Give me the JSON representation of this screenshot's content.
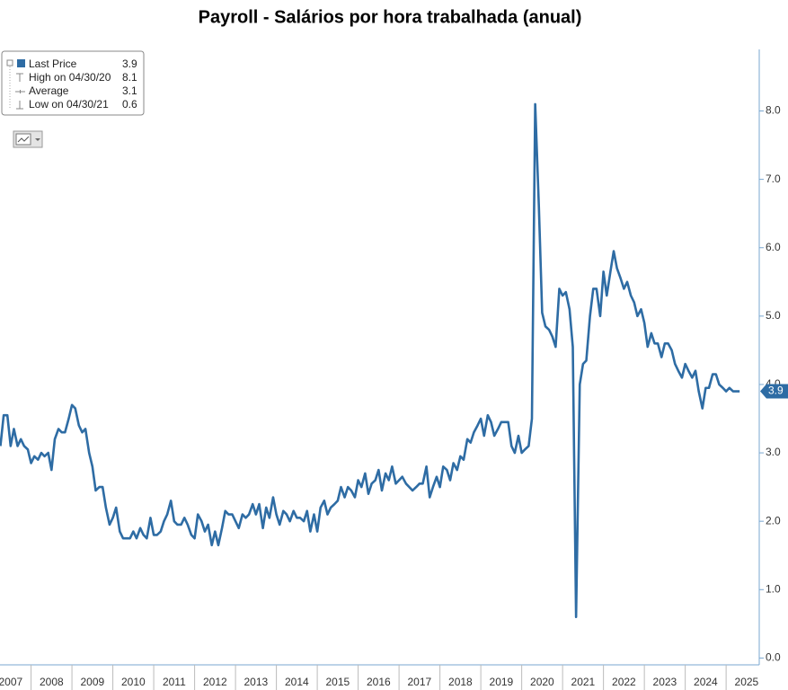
{
  "chart_data": {
    "type": "line",
    "title": "Payroll - Salários por hora trabalhada (anual)",
    "legend": {
      "position": "upper left",
      "items": [
        {
          "label": "Last Price",
          "value": 3.9
        },
        {
          "label": "High on 04/30/20",
          "value": 8.1
        },
        {
          "label": "Average",
          "value": 3.1
        },
        {
          "label": "Low on 04/30/21",
          "value": 0.6
        }
      ]
    },
    "x": [
      2007.25,
      2007.33,
      2007.42,
      2007.5,
      2007.58,
      2007.67,
      2007.75,
      2007.83,
      2007.92,
      2008.0,
      2008.08,
      2008.17,
      2008.25,
      2008.33,
      2008.42,
      2008.5,
      2008.58,
      2008.67,
      2008.75,
      2008.83,
      2008.92,
      2009.0,
      2009.08,
      2009.17,
      2009.25,
      2009.33,
      2009.42,
      2009.5,
      2009.58,
      2009.67,
      2009.75,
      2009.83,
      2009.92,
      2010.0,
      2010.08,
      2010.17,
      2010.25,
      2010.33,
      2010.42,
      2010.5,
      2010.58,
      2010.67,
      2010.75,
      2010.83,
      2010.92,
      2011.0,
      2011.08,
      2011.17,
      2011.25,
      2011.33,
      2011.42,
      2011.5,
      2011.58,
      2011.67,
      2011.75,
      2011.83,
      2011.92,
      2012.0,
      2012.08,
      2012.17,
      2012.25,
      2012.33,
      2012.42,
      2012.5,
      2012.58,
      2012.67,
      2012.75,
      2012.83,
      2012.92,
      2013.0,
      2013.08,
      2013.17,
      2013.25,
      2013.33,
      2013.42,
      2013.5,
      2013.58,
      2013.67,
      2013.75,
      2013.83,
      2013.92,
      2014.0,
      2014.08,
      2014.17,
      2014.25,
      2014.33,
      2014.42,
      2014.5,
      2014.58,
      2014.67,
      2014.75,
      2014.83,
      2014.92,
      2015.0,
      2015.08,
      2015.17,
      2015.25,
      2015.33,
      2015.42,
      2015.5,
      2015.58,
      2015.67,
      2015.75,
      2015.83,
      2015.92,
      2016.0,
      2016.08,
      2016.17,
      2016.25,
      2016.33,
      2016.42,
      2016.5,
      2016.58,
      2016.67,
      2016.75,
      2016.83,
      2016.92,
      2017.0,
      2017.08,
      2017.17,
      2017.25,
      2017.33,
      2017.42,
      2017.5,
      2017.58,
      2017.67,
      2017.75,
      2017.83,
      2017.92,
      2018.0,
      2018.08,
      2018.17,
      2018.25,
      2018.33,
      2018.42,
      2018.5,
      2018.58,
      2018.67,
      2018.75,
      2018.83,
      2018.92,
      2019.0,
      2019.08,
      2019.17,
      2019.25,
      2019.33,
      2019.42,
      2019.5,
      2019.58,
      2019.67,
      2019.75,
      2019.83,
      2019.92,
      2020.0,
      2020.08,
      2020.17,
      2020.25,
      2020.33,
      2020.42,
      2020.5,
      2020.58,
      2020.67,
      2020.75,
      2020.83,
      2020.92,
      2021.0,
      2021.08,
      2021.17,
      2021.25,
      2021.33,
      2021.42,
      2021.5,
      2021.58,
      2021.67,
      2021.75,
      2021.83,
      2021.92,
      2022.0,
      2022.08,
      2022.17,
      2022.25,
      2022.33,
      2022.42,
      2022.5,
      2022.58,
      2022.67,
      2022.75,
      2022.83,
      2022.92,
      2023.0,
      2023.08,
      2023.17,
      2023.25,
      2023.33,
      2023.42,
      2023.5,
      2023.58,
      2023.67,
      2023.75,
      2023.83,
      2023.92,
      2024.0,
      2024.08,
      2024.17,
      2024.25,
      2024.33,
      2024.42,
      2024.5,
      2024.58,
      2024.67,
      2024.75,
      2024.83,
      2024.92,
      2025.0,
      2025.08,
      2025.17,
      2025.25,
      2025.33
    ],
    "series": [
      {
        "name": "Last Price",
        "color": "#2e6ca4",
        "values": [
          3.1,
          3.55,
          3.55,
          3.1,
          3.35,
          3.1,
          3.2,
          3.1,
          3.05,
          2.85,
          2.95,
          2.9,
          3.0,
          2.95,
          3.0,
          2.75,
          3.2,
          3.35,
          3.3,
          3.3,
          3.5,
          3.7,
          3.65,
          3.4,
          3.3,
          3.35,
          3.0,
          2.8,
          2.45,
          2.5,
          2.5,
          2.2,
          1.95,
          2.05,
          2.2,
          1.85,
          1.75,
          1.75,
          1.75,
          1.85,
          1.75,
          1.9,
          1.8,
          1.75,
          2.05,
          1.8,
          1.8,
          1.85,
          2.0,
          2.1,
          2.3,
          2.0,
          1.95,
          1.95,
          2.05,
          1.95,
          1.8,
          1.75,
          2.1,
          2.0,
          1.85,
          1.95,
          1.65,
          1.85,
          1.65,
          1.9,
          2.15,
          2.1,
          2.1,
          2.0,
          1.9,
          2.1,
          2.05,
          2.1,
          2.25,
          2.1,
          2.25,
          1.9,
          2.2,
          2.05,
          2.35,
          2.1,
          1.95,
          2.15,
          2.1,
          2.0,
          2.15,
          2.05,
          2.05,
          2.0,
          2.15,
          1.85,
          2.1,
          1.85,
          2.2,
          2.3,
          2.1,
          2.2,
          2.25,
          2.3,
          2.5,
          2.35,
          2.5,
          2.45,
          2.35,
          2.6,
          2.5,
          2.7,
          2.4,
          2.55,
          2.6,
          2.75,
          2.45,
          2.7,
          2.6,
          2.8,
          2.55,
          2.6,
          2.65,
          2.55,
          2.5,
          2.45,
          2.5,
          2.55,
          2.55,
          2.8,
          2.35,
          2.5,
          2.65,
          2.5,
          2.8,
          2.75,
          2.6,
          2.85,
          2.75,
          2.95,
          2.9,
          3.2,
          3.15,
          3.3,
          3.4,
          3.5,
          3.25,
          3.55,
          3.45,
          3.25,
          3.35,
          3.45,
          3.45,
          3.45,
          3.1,
          3.0,
          3.25,
          3.0,
          3.05,
          3.1,
          3.5,
          8.1,
          6.6,
          5.05,
          4.85,
          4.8,
          4.7,
          4.55,
          5.4,
          5.3,
          5.35,
          5.1,
          4.55,
          0.6,
          4.0,
          4.3,
          4.35,
          5.0,
          5.4,
          5.4,
          5.0,
          5.65,
          5.3,
          5.65,
          5.95,
          5.7,
          5.55,
          5.4,
          5.5,
          5.3,
          5.2,
          5.0,
          5.1,
          4.9,
          4.55,
          4.75,
          4.6,
          4.6,
          4.4,
          4.6,
          4.6,
          4.5,
          4.3,
          4.2,
          4.1,
          4.3,
          4.2,
          4.1,
          4.2,
          3.9,
          3.65,
          3.95,
          3.95,
          4.15,
          4.15,
          4.0,
          3.95,
          3.9,
          3.95,
          3.9,
          3.9,
          3.9
        ]
      }
    ],
    "xlim": [
      2007.24,
      2025.81
    ],
    "xticks": [
      2007,
      2008,
      2009,
      2010,
      2011,
      2012,
      2013,
      2014,
      2015,
      2016,
      2017,
      2018,
      2019,
      2020,
      2021,
      2022,
      2023,
      2024,
      2025
    ],
    "ylim": [
      -0.1,
      8.9
    ],
    "yticks": [
      {
        "value": 0,
        "label": "0.0"
      },
      {
        "value": 1,
        "label": "1.0"
      },
      {
        "value": 2,
        "label": "2.0"
      },
      {
        "value": 3,
        "label": "3.0"
      },
      {
        "value": 4,
        "label": "4.0"
      },
      {
        "value": 5,
        "label": "5.0"
      },
      {
        "value": 6,
        "label": "6.0"
      },
      {
        "value": 7,
        "label": "7.0"
      },
      {
        "value": 8,
        "label": "8.0"
      }
    ],
    "grid": false
  }
}
